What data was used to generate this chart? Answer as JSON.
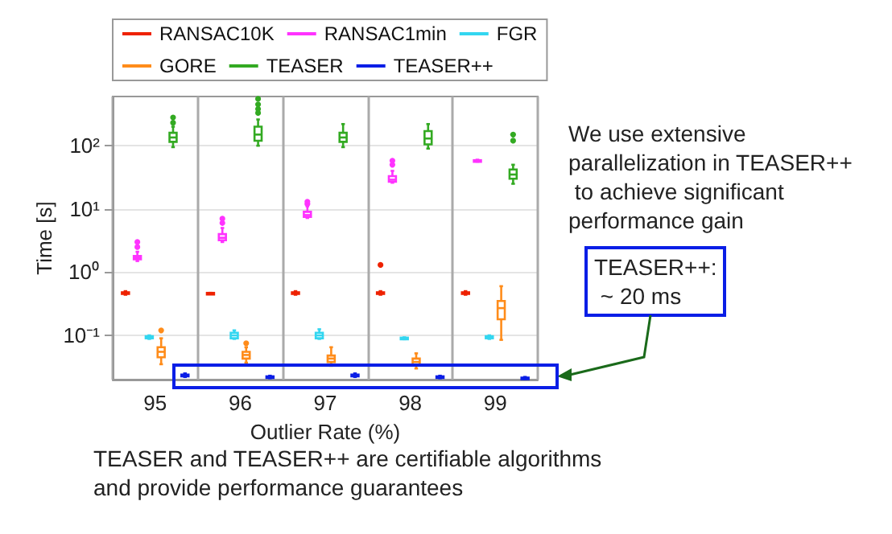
{
  "chart_data": {
    "type": "box",
    "xlabel": "Outlier Rate (%)",
    "ylabel": "Time [s]",
    "log": "y",
    "grid": true,
    "legend": "top",
    "categories": [
      "95",
      "96",
      "97",
      "98",
      "99"
    ],
    "ylim": [
      0.02,
      600
    ],
    "yticks": [
      {
        "value": 0.1,
        "label": "10⁻¹"
      },
      {
        "value": 1,
        "label": "10⁰"
      },
      {
        "value": 10,
        "label": "10¹"
      },
      {
        "value": 100,
        "label": "10²"
      }
    ],
    "series": [
      {
        "name": "RANSAC10K",
        "color": "#ee2200",
        "boxes": [
          {
            "low": 0.44,
            "q1": 0.46,
            "median": 0.47,
            "q3": 0.48,
            "high": 0.5
          },
          {
            "low": 0.45,
            "q1": 0.46,
            "median": 0.46,
            "q3": 0.47,
            "high": 0.47
          },
          {
            "low": 0.44,
            "q1": 0.46,
            "median": 0.47,
            "q3": 0.48,
            "high": 0.5
          },
          {
            "low": 0.44,
            "q1": 0.46,
            "median": 0.47,
            "q3": 0.48,
            "high": 0.5,
            "outliers": [
              1.3
            ]
          },
          {
            "low": 0.44,
            "q1": 0.46,
            "median": 0.47,
            "q3": 0.48,
            "high": 0.5
          }
        ]
      },
      {
        "name": "RANSAC1min",
        "color": "#ff33ff",
        "boxes": [
          {
            "low": 1.5,
            "q1": 1.6,
            "median": 1.7,
            "q3": 1.8,
            "high": 2.1,
            "outliers": [
              2.5,
              3
            ]
          },
          {
            "low": 3,
            "q1": 3.2,
            "median": 3.5,
            "q3": 4,
            "high": 5,
            "outliers": [
              6,
              7
            ]
          },
          {
            "low": 7.2,
            "q1": 7.5,
            "median": 8,
            "q3": 9,
            "high": 11,
            "outliers": [
              12,
              13
            ]
          },
          {
            "low": 26,
            "q1": 27,
            "median": 29,
            "q3": 33,
            "high": 40,
            "outliers": [
              50,
              58
            ]
          },
          {
            "low": 56,
            "q1": 57,
            "median": 58,
            "q3": 59,
            "high": 60
          }
        ]
      },
      {
        "name": "FGR",
        "color": "#33d6f0",
        "boxes": [
          {
            "low": 0.088,
            "q1": 0.09,
            "median": 0.092,
            "q3": 0.097,
            "high": 0.1
          },
          {
            "low": 0.088,
            "q1": 0.09,
            "median": 0.1,
            "q3": 0.11,
            "high": 0.12
          },
          {
            "low": 0.088,
            "q1": 0.09,
            "median": 0.1,
            "q3": 0.11,
            "high": 0.125
          },
          {
            "low": 0.087,
            "q1": 0.088,
            "median": 0.09,
            "q3": 0.092,
            "high": 0.093
          },
          {
            "low": 0.088,
            "q1": 0.09,
            "median": 0.093,
            "q3": 0.097,
            "high": 0.1
          }
        ]
      },
      {
        "name": "GORE",
        "color": "#ff8c1a",
        "boxes": [
          {
            "low": 0.035,
            "q1": 0.045,
            "median": 0.055,
            "q3": 0.065,
            "high": 0.09,
            "outliers": [
              0.12
            ]
          },
          {
            "low": 0.037,
            "q1": 0.043,
            "median": 0.049,
            "q3": 0.055,
            "high": 0.065,
            "outliers": [
              0.075
            ]
          },
          {
            "low": 0.033,
            "q1": 0.038,
            "median": 0.043,
            "q3": 0.048,
            "high": 0.065
          },
          {
            "low": 0.03,
            "q1": 0.034,
            "median": 0.038,
            "q3": 0.043,
            "high": 0.052
          },
          {
            "low": 0.085,
            "q1": 0.18,
            "median": 0.27,
            "q3": 0.35,
            "high": 0.6
          }
        ]
      },
      {
        "name": "TEASER",
        "color": "#33aa22",
        "boxes": [
          {
            "low": 95,
            "q1": 115,
            "median": 135,
            "q3": 160,
            "high": 200,
            "outliers": [
              230,
              280
            ]
          },
          {
            "low": 100,
            "q1": 120,
            "median": 150,
            "q3": 200,
            "high": 260,
            "outliers": [
              330,
              380,
              450,
              550
            ]
          },
          {
            "low": 95,
            "q1": 115,
            "median": 135,
            "q3": 160,
            "high": 220
          },
          {
            "low": 90,
            "q1": 105,
            "median": 130,
            "q3": 170,
            "high": 220
          },
          {
            "low": 25,
            "q1": 30,
            "median": 35,
            "q3": 42,
            "high": 50,
            "outliers": [
              120,
              150
            ]
          }
        ]
      },
      {
        "name": "TEASER++",
        "color": "#0a1ee6",
        "boxes": [
          {
            "low": 0.022,
            "q1": 0.0225,
            "median": 0.023,
            "q3": 0.024,
            "high": 0.025
          },
          {
            "low": 0.021,
            "q1": 0.0215,
            "median": 0.022,
            "q3": 0.0225,
            "high": 0.023
          },
          {
            "low": 0.022,
            "q1": 0.0225,
            "median": 0.023,
            "q3": 0.024,
            "high": 0.025
          },
          {
            "low": 0.021,
            "q1": 0.0215,
            "median": 0.022,
            "q3": 0.0225,
            "high": 0.023
          },
          {
            "low": 0.0205,
            "q1": 0.021,
            "median": 0.021,
            "q3": 0.0215,
            "high": 0.022
          }
        ]
      }
    ],
    "annotations": [
      "We use extensive parallelization in TEASER++ to achieve significant performance gain",
      "TEASER++: ~ 20 ms",
      "TEASER and TEASER++ are certifiable algorithms and provide performance guarantees"
    ]
  }
}
